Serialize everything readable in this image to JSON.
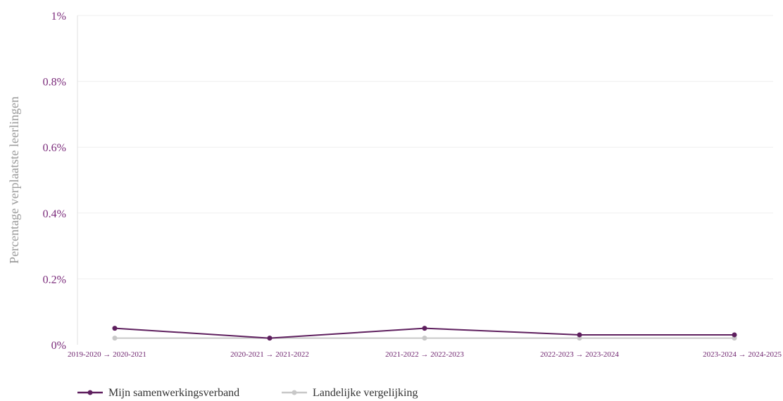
{
  "chart_data": {
    "type": "line",
    "title": "",
    "xlabel": "",
    "ylabel": "Percentage verplaatste leerlingen",
    "ylim": [
      0,
      1
    ],
    "y_unit": "%",
    "y_ticks": [
      0,
      0.2,
      0.4,
      0.6,
      0.8,
      1
    ],
    "y_tick_labels": [
      "0%",
      "0.2%",
      "0.4%",
      "0.6%",
      "0.8%",
      "1%"
    ],
    "categories": [
      "2019-2020 → 2020-2021",
      "2020-2021 → 2021-2022",
      "2021-2022 → 2022-2023",
      "2022-2023 → 2023-2024",
      "2023-2024 → 2024-2025"
    ],
    "grid": true,
    "legend_position": "bottom-left",
    "series": [
      {
        "name": "Mijn samenwerkingsverband",
        "color": "#5e1f5e",
        "values": [
          0.05,
          0.02,
          0.05,
          0.03,
          0.03
        ]
      },
      {
        "name": "Landelijke vergelijking",
        "color": "#c8c8c8",
        "values": [
          0.02,
          0.02,
          0.02,
          0.02,
          0.02
        ]
      }
    ]
  }
}
